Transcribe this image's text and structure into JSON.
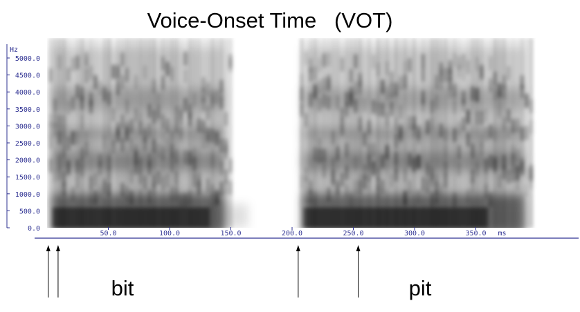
{
  "chart_data": {
    "type": "heatmap",
    "title": "Voice-Onset Time   (VOT)",
    "y_unit": "Hz",
    "x_unit": "ms",
    "ylim": [
      0,
      5000
    ],
    "xlim": [
      0,
      400
    ],
    "y_ticks": [
      {
        "value": 0,
        "label": "0.0"
      },
      {
        "value": 500,
        "label": "500.0"
      },
      {
        "value": 1000,
        "label": "1000.0"
      },
      {
        "value": 1500,
        "label": "1500.0"
      },
      {
        "value": 2000,
        "label": "2000.0"
      },
      {
        "value": 2500,
        "label": "2500.0"
      },
      {
        "value": 3000,
        "label": "3000.0"
      },
      {
        "value": 3500,
        "label": "3500.0"
      },
      {
        "value": 4000,
        "label": "4000.0"
      },
      {
        "value": 4500,
        "label": "4500.0"
      },
      {
        "value": 5000,
        "label": "5000.0"
      }
    ],
    "x_ticks": [
      {
        "value": 50,
        "label": "50.0"
      },
      {
        "value": 100,
        "label": "100.0"
      },
      {
        "value": 150,
        "label": "150.0"
      },
      {
        "value": 200,
        "label": "200.0"
      },
      {
        "value": 250,
        "label": "250.0"
      },
      {
        "value": 300,
        "label": "300.0"
      },
      {
        "value": 350,
        "label": "350.0"
      }
    ],
    "segments": [
      {
        "name": "bit",
        "start": 0,
        "end": 155
      },
      {
        "name": "pit",
        "start": 205,
        "end": 400
      }
    ],
    "markers": [
      {
        "time": 1
      },
      {
        "time": 9
      },
      {
        "time": 205
      },
      {
        "time": 254
      }
    ],
    "grid": false,
    "colormap": "grayscale"
  }
}
